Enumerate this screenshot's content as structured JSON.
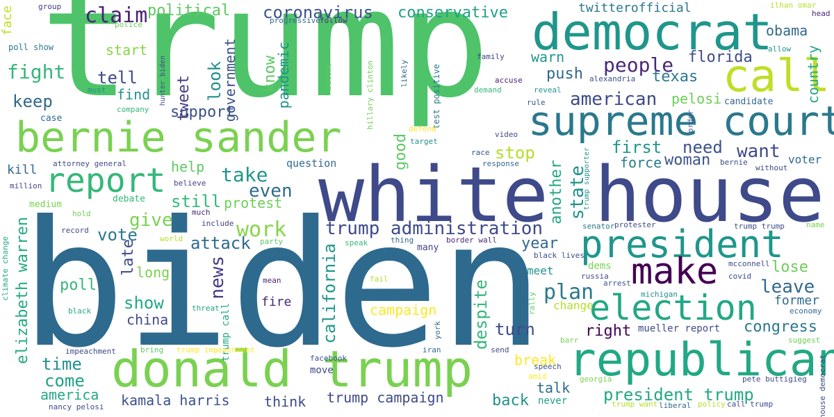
{
  "words": [
    {
      "text": "trump",
      "color": "#4ec36a"
    },
    {
      "text": "biden",
      "color": "#2e6a8e"
    },
    {
      "text": "white house",
      "color": "#3e4a89"
    },
    {
      "text": "democrat",
      "color": "#1f968b"
    },
    {
      "text": "supreme court",
      "color": "#2a788e"
    },
    {
      "text": "donald trump",
      "color": "#7ad151"
    },
    {
      "text": "republican",
      "color": "#22a884"
    },
    {
      "text": "bernie sander",
      "color": "#7ad151"
    },
    {
      "text": "president",
      "color": "#1f968b"
    },
    {
      "text": "election",
      "color": "#22a884"
    },
    {
      "text": "call",
      "color": "#bddf26"
    },
    {
      "text": "make",
      "color": "#440154"
    },
    {
      "text": "report",
      "color": "#35b779"
    },
    {
      "text": "claim",
      "color": "#482173"
    },
    {
      "text": "coronavirus",
      "color": "#3b528b"
    },
    {
      "text": "political",
      "color": "#5ec962"
    },
    {
      "text": "conservative",
      "color": "#1fa187"
    },
    {
      "text": "twitterofficial",
      "color": "#2a788e"
    },
    {
      "text": "obama",
      "color": "#31688e"
    },
    {
      "text": "florida",
      "color": "#3e4a89"
    },
    {
      "text": "people",
      "color": "#482878"
    },
    {
      "text": "texas",
      "color": "#2a788e"
    },
    {
      "text": "american",
      "color": "#3e4a89"
    },
    {
      "text": "pelosi",
      "color": "#6ece58"
    },
    {
      "text": "country",
      "color": "#22a884"
    },
    {
      "text": "warn",
      "color": "#1f968b"
    },
    {
      "text": "push",
      "color": "#31688e"
    },
    {
      "text": "look",
      "color": "#21918c"
    },
    {
      "text": "tweet",
      "color": "#443983"
    },
    {
      "text": "government",
      "color": "#3b528b"
    },
    {
      "text": "know",
      "color": "#5ec962"
    },
    {
      "text": "pandemic",
      "color": "#21918c"
    },
    {
      "text": "fight",
      "color": "#35b779"
    },
    {
      "text": "start",
      "color": "#86d549"
    },
    {
      "text": "tell",
      "color": "#3e4a89"
    },
    {
      "text": "keep",
      "color": "#31688e"
    },
    {
      "text": "find",
      "color": "#21918c"
    },
    {
      "text": "support",
      "color": "#3b528b"
    },
    {
      "text": "face",
      "color": "#bddf26"
    },
    {
      "text": "poll show",
      "color": "#2a788e"
    },
    {
      "text": "group",
      "color": "#443983"
    },
    {
      "text": "police",
      "color": "#6ece58"
    },
    {
      "text": "progressive",
      "color": "#31688e"
    },
    {
      "text": "follow",
      "color": "#482878"
    },
    {
      "text": "ilhan omar",
      "color": "#b5de2b"
    },
    {
      "text": "allow",
      "color": "#1f968b"
    },
    {
      "text": "head",
      "color": "#482878"
    },
    {
      "text": "hunter biden",
      "color": "#3e4a89"
    },
    {
      "text": "must",
      "color": "#21918c"
    },
    {
      "text": "company",
      "color": "#35b779"
    },
    {
      "text": "case",
      "color": "#2e6a8e"
    },
    {
      "text": "hillary clinton",
      "color": "#6ece58"
    },
    {
      "text": "become",
      "color": "#5ec962"
    },
    {
      "text": "likely",
      "color": "#31688e"
    },
    {
      "text": "test positive",
      "color": "#2a788e"
    },
    {
      "text": "family",
      "color": "#414487"
    },
    {
      "text": "alexandria",
      "color": "#3b528b"
    },
    {
      "text": "accuse",
      "color": "#482173"
    },
    {
      "text": "demand",
      "color": "#35b779"
    },
    {
      "text": "reveal",
      "color": "#1f968b"
    },
    {
      "text": "rule",
      "color": "#3b528b"
    },
    {
      "text": "candidate",
      "color": "#31688e"
    },
    {
      "text": "order",
      "color": "#3b528b"
    },
    {
      "text": "defend",
      "color": "#fde725"
    },
    {
      "text": "target",
      "color": "#21918c"
    },
    {
      "text": "video",
      "color": "#3e4a89"
    },
    {
      "text": "good",
      "color": "#5ec962"
    },
    {
      "text": "stop",
      "color": "#b5de2b"
    },
    {
      "text": "first",
      "color": "#1f968b"
    },
    {
      "text": "need",
      "color": "#3b528b"
    },
    {
      "text": "want",
      "color": "#3e4a89"
    },
    {
      "text": "race",
      "color": "#3b528b"
    },
    {
      "text": "response",
      "color": "#31688e"
    },
    {
      "text": "woman",
      "color": "#3b528b"
    },
    {
      "text": "force",
      "color": "#2a788e"
    },
    {
      "text": "trump supporter",
      "color": "#21918c"
    },
    {
      "text": "bernie",
      "color": "#3e4a89"
    },
    {
      "text": "voter",
      "color": "#2e6a8e"
    },
    {
      "text": "without",
      "color": "#3e4a89"
    },
    {
      "text": "kill",
      "color": "#31688e"
    },
    {
      "text": "attorney general",
      "color": "#3e4a89"
    },
    {
      "text": "question",
      "color": "#31688e"
    },
    {
      "text": "help",
      "color": "#5ec962"
    },
    {
      "text": "take",
      "color": "#1f968b"
    },
    {
      "text": "even",
      "color": "#2e6a8e"
    },
    {
      "text": "state",
      "color": "#21918c"
    },
    {
      "text": "another",
      "color": "#22a884"
    },
    {
      "text": "million",
      "color": "#414487"
    },
    {
      "text": "medium",
      "color": "#7ad151"
    },
    {
      "text": "believe",
      "color": "#414487"
    },
    {
      "text": "debate",
      "color": "#35b779"
    },
    {
      "text": "still",
      "color": "#35b779"
    },
    {
      "text": "protest",
      "color": "#6ece58"
    },
    {
      "text": "give",
      "color": "#7ad151"
    },
    {
      "text": "elizabeth warren",
      "color": "#22a884"
    },
    {
      "text": "hold",
      "color": "#6ece58"
    },
    {
      "text": "much",
      "color": "#482878"
    },
    {
      "text": "include",
      "color": "#414487"
    },
    {
      "text": "trump administration",
      "color": "#3e4a89"
    },
    {
      "text": "work",
      "color": "#86d549"
    },
    {
      "text": "senator",
      "color": "#2a788e"
    },
    {
      "text": "protester",
      "color": "#3e4a89"
    },
    {
      "text": "trump trump",
      "color": "#3e4a89"
    },
    {
      "text": "name",
      "color": "#7ad151"
    },
    {
      "text": "vote",
      "color": "#2a788e"
    },
    {
      "text": "attack",
      "color": "#2e6a8e"
    },
    {
      "text": "record",
      "color": "#3e4a89"
    },
    {
      "text": "world",
      "color": "#b5de2b"
    },
    {
      "text": "party",
      "color": "#5ec962"
    },
    {
      "text": "speak",
      "color": "#35b779"
    },
    {
      "text": "thing",
      "color": "#31688e"
    },
    {
      "text": "border wall",
      "color": "#482878"
    },
    {
      "text": "many",
      "color": "#414487"
    },
    {
      "text": "year",
      "color": "#31688e"
    },
    {
      "text": "black lives",
      "color": "#3e4a89"
    },
    {
      "text": "climate change",
      "color": "#22a884"
    },
    {
      "text": "late",
      "color": "#3e4a89"
    },
    {
      "text": "long",
      "color": "#7ad151"
    },
    {
      "text": "news",
      "color": "#443983"
    },
    {
      "text": "california",
      "color": "#1f968b"
    },
    {
      "text": "poll",
      "color": "#35b779"
    },
    {
      "text": "show",
      "color": "#22a884"
    },
    {
      "text": "mean",
      "color": "#482878"
    },
    {
      "text": "fail",
      "color": "#b5de2b"
    },
    {
      "text": "plan",
      "color": "#2a788e"
    },
    {
      "text": "dems",
      "color": "#7ad151"
    },
    {
      "text": "meet",
      "color": "#21918c"
    },
    {
      "text": "russia",
      "color": "#3e4a89"
    },
    {
      "text": "lose",
      "color": "#6ece58"
    },
    {
      "text": "leave",
      "color": "#31688e"
    },
    {
      "text": "mcconnell",
      "color": "#3e4a89"
    },
    {
      "text": "covid",
      "color": "#3e4a89"
    },
    {
      "text": "arrest",
      "color": "#3b528b"
    },
    {
      "text": "former",
      "color": "#2e6a8e"
    },
    {
      "text": "china",
      "color": "#3e4a89"
    },
    {
      "text": "trump call",
      "color": "#22a884"
    },
    {
      "text": "fire",
      "color": "#482878"
    },
    {
      "text": "threat",
      "color": "#1fa187"
    },
    {
      "text": "black",
      "color": "#22a884"
    },
    {
      "text": "change",
      "color": "#b5de2b"
    },
    {
      "text": "rally",
      "color": "#5ec962"
    },
    {
      "text": "michigan",
      "color": "#21918c"
    },
    {
      "text": "campaign",
      "color": "#fde725"
    },
    {
      "text": "despite",
      "color": "#35b779"
    },
    {
      "text": "congress",
      "color": "#2a788e"
    },
    {
      "text": "economy",
      "color": "#31688e"
    },
    {
      "text": "right",
      "color": "#440154"
    },
    {
      "text": "mueller report",
      "color": "#3e4a89"
    },
    {
      "text": "turn",
      "color": "#3e4a89"
    },
    {
      "text": "york",
      "color": "#31688e"
    },
    {
      "text": "barr",
      "color": "#7ad151"
    },
    {
      "text": "suggest",
      "color": "#6ece58"
    },
    {
      "text": "time",
      "color": "#21918c"
    },
    {
      "text": "impeachment",
      "color": "#3e4a89"
    },
    {
      "text": "bring",
      "color": "#5ec962"
    },
    {
      "text": "trump impeachment",
      "color": "#fde725"
    },
    {
      "text": "iran",
      "color": "#31688e"
    },
    {
      "text": "send",
      "color": "#3e4a89"
    },
    {
      "text": "break",
      "color": "#fde725"
    },
    {
      "text": "come",
      "color": "#1fa187"
    },
    {
      "text": "facebook",
      "color": "#3b528b"
    },
    {
      "text": "america",
      "color": "#22a884"
    },
    {
      "text": "move",
      "color": "#3e4a89"
    },
    {
      "text": "kamala harris",
      "color": "#3b528b"
    },
    {
      "text": "think",
      "color": "#3e4a89"
    },
    {
      "text": "trump campaign",
      "color": "#3e4a89"
    },
    {
      "text": "amid",
      "color": "#fde725"
    },
    {
      "text": "speech",
      "color": "#3b528b"
    },
    {
      "text": "talk",
      "color": "#2e6a8e"
    },
    {
      "text": "georgia",
      "color": "#7ad151"
    },
    {
      "text": "president trump",
      "color": "#22a884"
    },
    {
      "text": "pete buttigieg",
      "color": "#3e4a89"
    },
    {
      "text": "house democrat",
      "color": "#3e4a89"
    },
    {
      "text": "back",
      "color": "#21918c"
    },
    {
      "text": "never",
      "color": "#1fa187"
    },
    {
      "text": "trump want",
      "color": "#b5de2b"
    },
    {
      "text": "liberal",
      "color": "#2e6a8e"
    },
    {
      "text": "policy",
      "color": "#b5de2b"
    },
    {
      "text": "call trump",
      "color": "#3e4a89"
    },
    {
      "text": "nancy pelosi",
      "color": "#3e4a89"
    }
  ]
}
